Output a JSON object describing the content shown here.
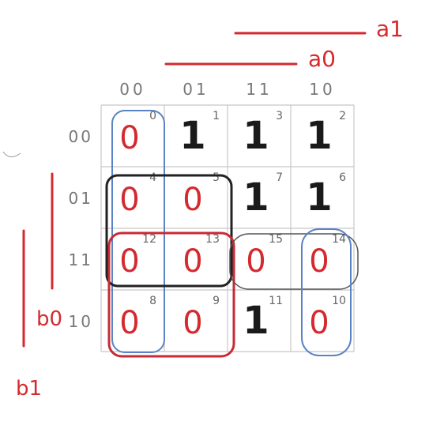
{
  "variables": {
    "a1": "a1",
    "a0": "a0",
    "b0": "b0",
    "b1": "b1"
  },
  "column_headers": [
    "00",
    "01",
    "11",
    "10"
  ],
  "row_headers": [
    "00",
    "01",
    "11",
    "10"
  ],
  "cells": [
    [
      {
        "value": "0",
        "index": "0"
      },
      {
        "value": "1",
        "index": "1"
      },
      {
        "value": "1",
        "index": "3"
      },
      {
        "value": "1",
        "index": "2"
      }
    ],
    [
      {
        "value": "0",
        "index": "4"
      },
      {
        "value": "0",
        "index": "5"
      },
      {
        "value": "1",
        "index": "7"
      },
      {
        "value": "1",
        "index": "6"
      }
    ],
    [
      {
        "value": "0",
        "index": "12"
      },
      {
        "value": "0",
        "index": "13"
      },
      {
        "value": "0",
        "index": "15"
      },
      {
        "value": "0",
        "index": "14"
      }
    ],
    [
      {
        "value": "0",
        "index": "8"
      },
      {
        "value": "0",
        "index": "9"
      },
      {
        "value": "1",
        "index": "11"
      },
      {
        "value": "0",
        "index": "10"
      }
    ]
  ],
  "colors": {
    "zero": "#d42a2f",
    "one": "#1a1a1a",
    "label": "#d42a2f",
    "header": "#777777",
    "index": "#666666",
    "grid": "#c8c8c8",
    "group_blue": "#5b82c4",
    "group_black": "#222222",
    "group_red": "#c92a35",
    "group_gray": "#555555"
  }
}
